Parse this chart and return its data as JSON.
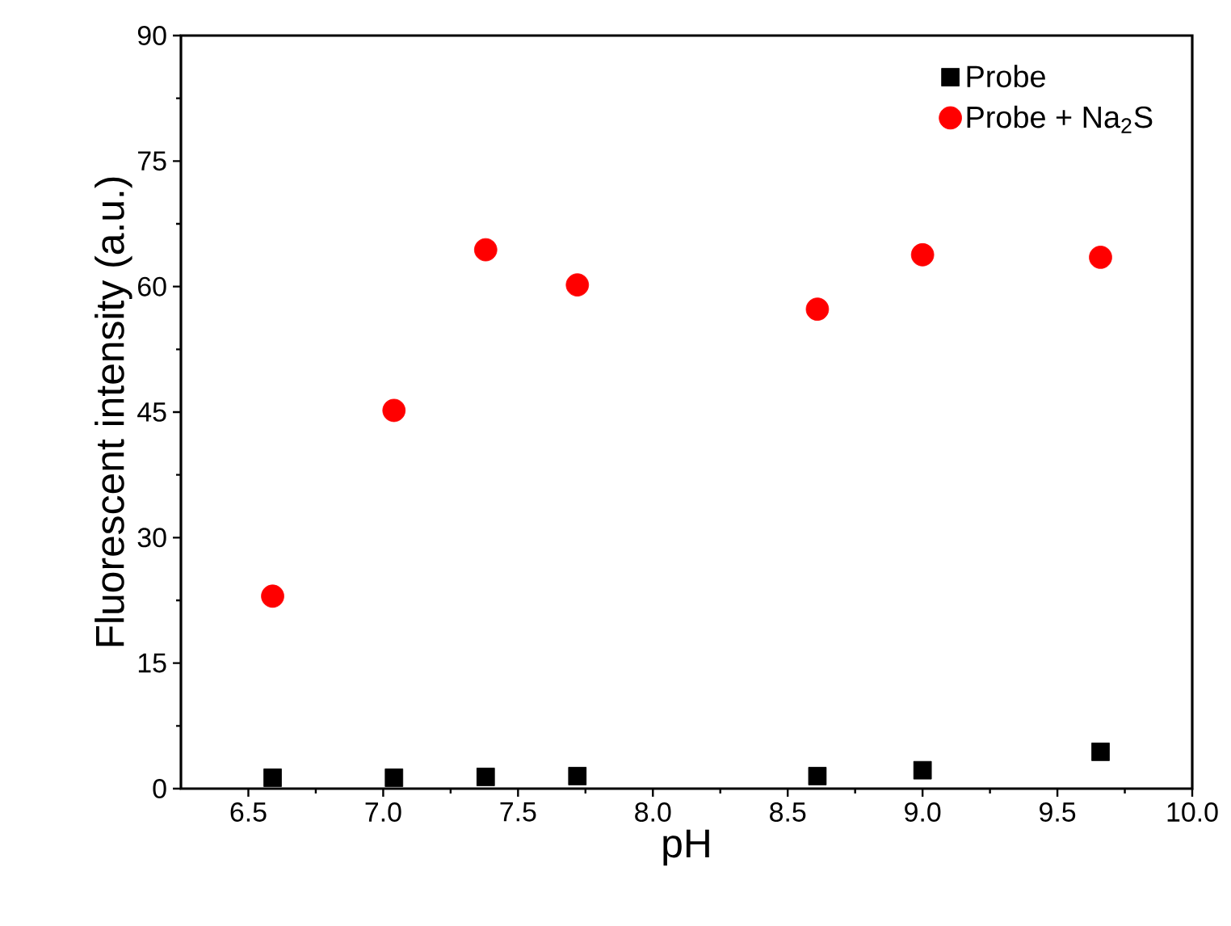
{
  "chart_data": {
    "type": "scatter",
    "xlabel": "pH",
    "ylabel": "Fluorescent intensity (a.u.)",
    "x": [
      6.59,
      7.04,
      7.38,
      7.72,
      8.61,
      9.0,
      9.66
    ],
    "series": [
      {
        "name": "Probe",
        "color": "#000000",
        "marker": "square",
        "values": [
          1.3,
          1.3,
          1.4,
          1.5,
          1.5,
          2.2,
          4.4
        ]
      },
      {
        "name": "Probe + Na$_{2}$S",
        "color": "#ff0000",
        "marker": "circle",
        "values": [
          23.0,
          45.2,
          64.4,
          60.2,
          57.3,
          63.8,
          63.5
        ]
      }
    ],
    "xlim": [
      6.25,
      10.0
    ],
    "ylim": [
      0,
      90
    ],
    "xticks": [
      6.5,
      {
        "value": 7,
        "label": "7.0"
      },
      7.5,
      {
        "value": 8,
        "label": "8.0"
      },
      8.5,
      {
        "value": 9,
        "label": "9.0"
      },
      9.5,
      {
        "value": 10,
        "label": "10.0"
      }
    ],
    "yticks": [
      0,
      15,
      30,
      45,
      60,
      75,
      90
    ],
    "grid": false,
    "legend": "top right"
  }
}
